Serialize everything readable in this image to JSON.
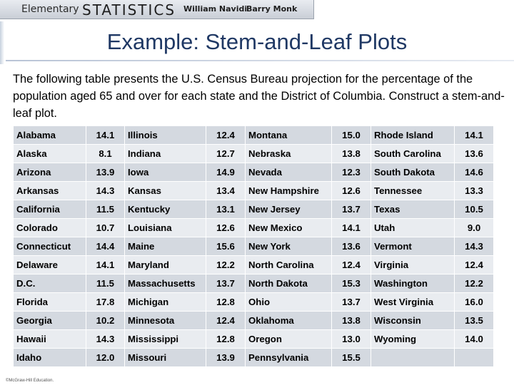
{
  "banner": {
    "elementary": "Elementary",
    "statistics": "STATISTICS",
    "author1": "William Navidi",
    "author2": "Barry Monk"
  },
  "title": "Example: Stem-and-Leaf Plots",
  "intro_text": "The following table presents the U.S. Census Bureau projection for the percentage of the population aged 65 and over for each state and the District of Columbia. Construct a stem-and-leaf plot.",
  "table": {
    "rows": [
      [
        {
          "state": "Alabama",
          "value": "14.1"
        },
        {
          "state": "Illinois",
          "value": "12.4"
        },
        {
          "state": "Montana",
          "value": "15.0"
        },
        {
          "state": "Rhode Island",
          "value": "14.1"
        }
      ],
      [
        {
          "state": "Alaska",
          "value": "8.1"
        },
        {
          "state": "Indiana",
          "value": "12.7"
        },
        {
          "state": "Nebraska",
          "value": "13.8"
        },
        {
          "state": "South Carolina",
          "value": "13.6"
        }
      ],
      [
        {
          "state": "Arizona",
          "value": "13.9"
        },
        {
          "state": "Iowa",
          "value": "14.9"
        },
        {
          "state": "Nevada",
          "value": "12.3"
        },
        {
          "state": "South Dakota",
          "value": "14.6"
        }
      ],
      [
        {
          "state": "Arkansas",
          "value": "14.3"
        },
        {
          "state": "Kansas",
          "value": "13.4"
        },
        {
          "state": "New Hampshire",
          "value": "12.6"
        },
        {
          "state": "Tennessee",
          "value": "13.3"
        }
      ],
      [
        {
          "state": "California",
          "value": "11.5"
        },
        {
          "state": "Kentucky",
          "value": "13.1"
        },
        {
          "state": "New Jersey",
          "value": "13.7"
        },
        {
          "state": "Texas",
          "value": "10.5"
        }
      ],
      [
        {
          "state": "Colorado",
          "value": "10.7"
        },
        {
          "state": "Louisiana",
          "value": "12.6"
        },
        {
          "state": "New Mexico",
          "value": "14.1"
        },
        {
          "state": "Utah",
          "value": "9.0"
        }
      ],
      [
        {
          "state": "Connecticut",
          "value": "14.4"
        },
        {
          "state": "Maine",
          "value": "15.6"
        },
        {
          "state": "New York",
          "value": "13.6"
        },
        {
          "state": "Vermont",
          "value": "14.3"
        }
      ],
      [
        {
          "state": "Delaware",
          "value": "14.1"
        },
        {
          "state": "Maryland",
          "value": "12.2"
        },
        {
          "state": "North Carolina",
          "value": "12.4"
        },
        {
          "state": "Virginia",
          "value": "12.4"
        }
      ],
      [
        {
          "state": "D.C.",
          "value": "11.5"
        },
        {
          "state": "Massachusetts",
          "value": "13.7"
        },
        {
          "state": "North Dakota",
          "value": "15.3"
        },
        {
          "state": "Washington",
          "value": "12.2"
        }
      ],
      [
        {
          "state": "Florida",
          "value": "17.8"
        },
        {
          "state": "Michigan",
          "value": "12.8"
        },
        {
          "state": "Ohio",
          "value": "13.7"
        },
        {
          "state": "West Virginia",
          "value": "16.0"
        }
      ],
      [
        {
          "state": "Georgia",
          "value": "10.2"
        },
        {
          "state": "Minnesota",
          "value": "12.4"
        },
        {
          "state": "Oklahoma",
          "value": "13.8"
        },
        {
          "state": "Wisconsin",
          "value": "13.5"
        }
      ],
      [
        {
          "state": "Hawaii",
          "value": "14.3"
        },
        {
          "state": "Mississippi",
          "value": "12.8"
        },
        {
          "state": "Oregon",
          "value": "13.0"
        },
        {
          "state": "Wyoming",
          "value": "14.0"
        }
      ],
      [
        {
          "state": "Idaho",
          "value": "12.0"
        },
        {
          "state": "Missouri",
          "value": "13.9"
        },
        {
          "state": "Pennsylvania",
          "value": "15.5"
        },
        {
          "state": "",
          "value": ""
        }
      ]
    ]
  },
  "copyright": "©McGraw-Hill Education."
}
